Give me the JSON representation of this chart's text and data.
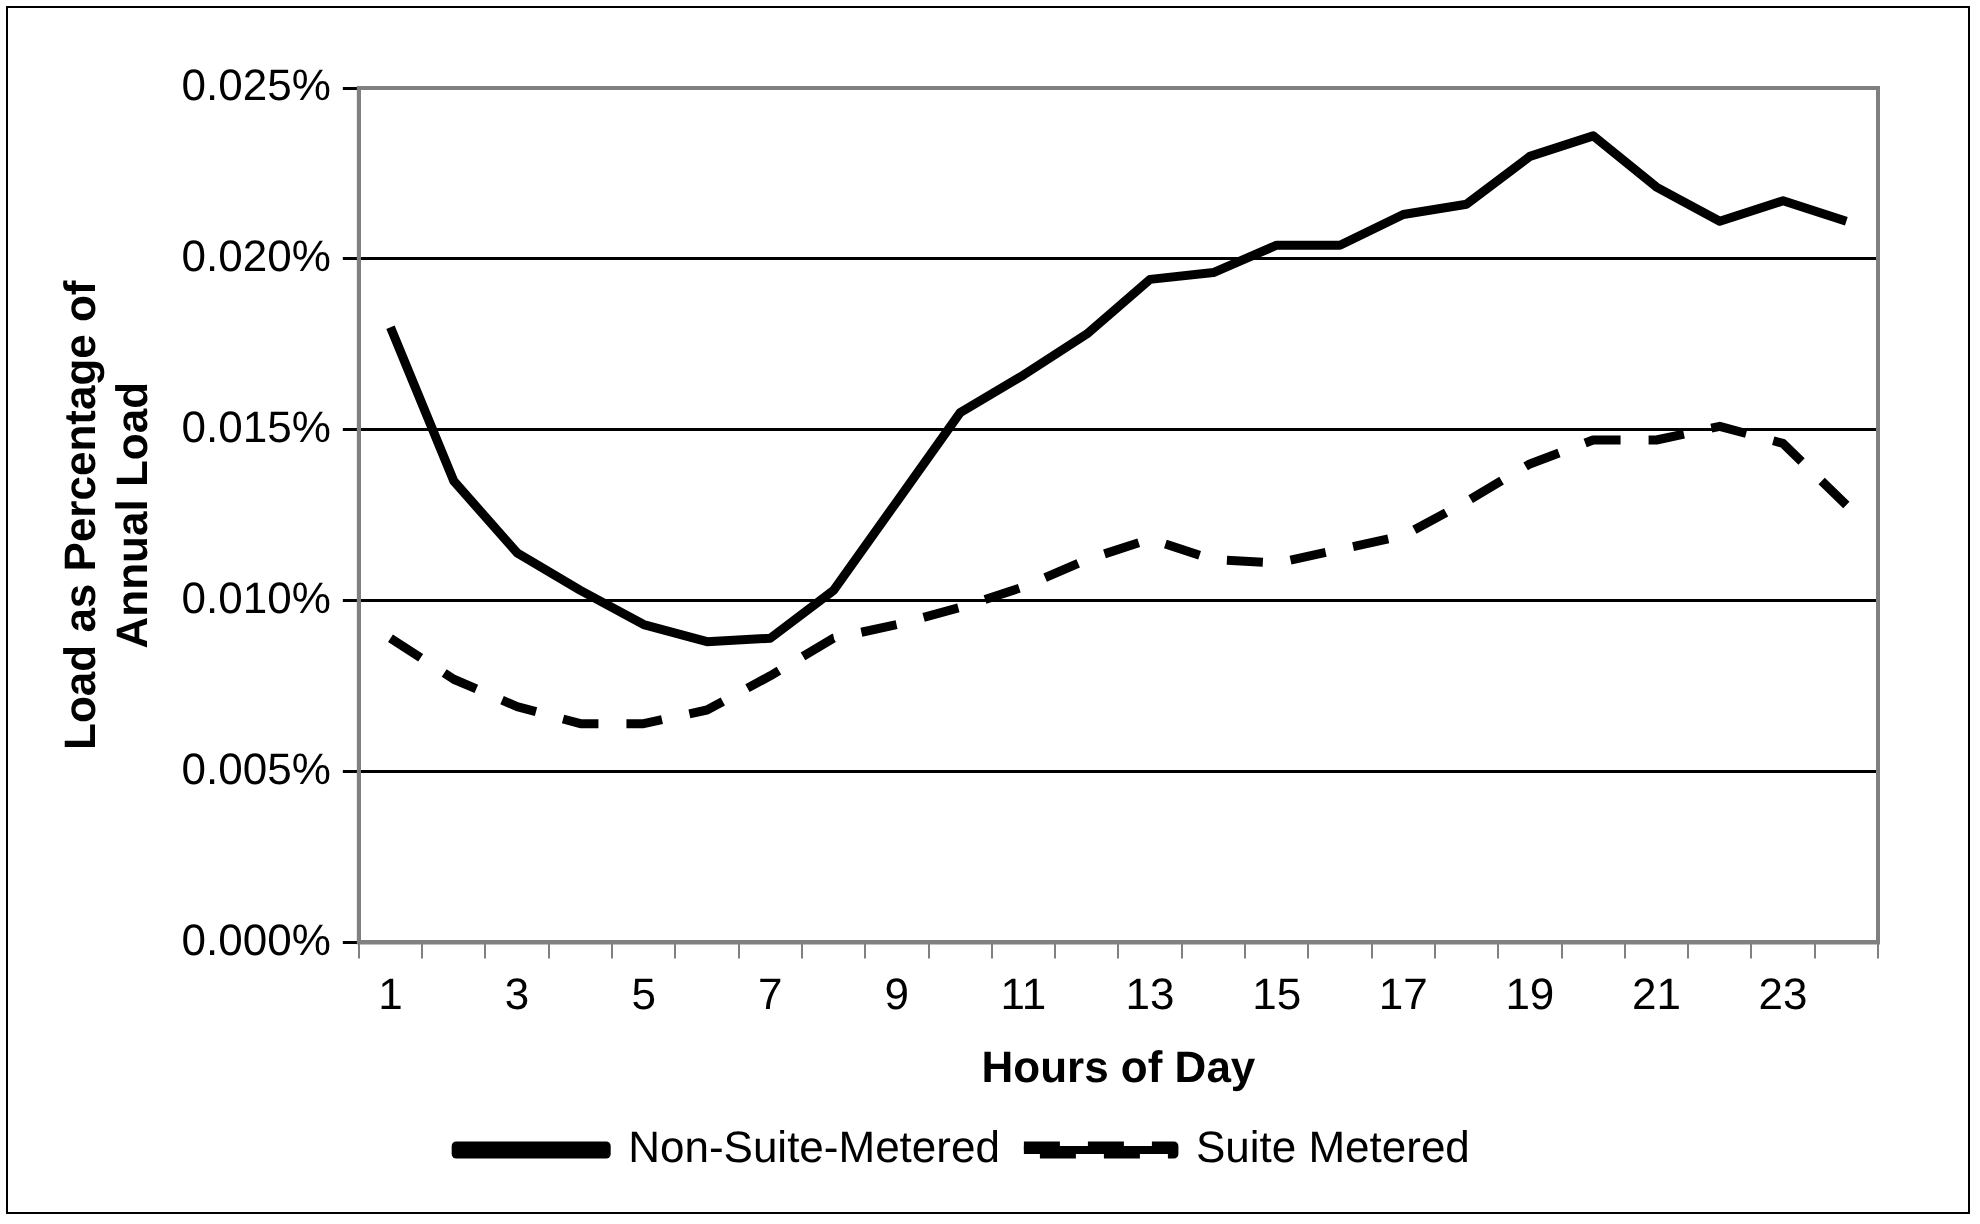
{
  "chart_data": {
    "type": "line",
    "xlabel": "Hours of Day",
    "ylabel": "Load as Percentage of Annual Load",
    "x": [
      1,
      2,
      3,
      4,
      5,
      6,
      7,
      8,
      9,
      10,
      11,
      12,
      13,
      14,
      15,
      16,
      17,
      18,
      19,
      20,
      21,
      22,
      23,
      24
    ],
    "xlim": [
      0.5,
      24.5
    ],
    "xticks": [
      {
        "value": 0.5,
        "label": null
      },
      1,
      {
        "value": 1.5,
        "label": null
      },
      {
        "value": 2.5,
        "label": null
      },
      3,
      {
        "value": 3.5,
        "label": null
      },
      {
        "value": 4.5,
        "label": null
      },
      5,
      {
        "value": 5.5,
        "label": null
      },
      {
        "value": 6.5,
        "label": null
      },
      7,
      {
        "value": 7.5,
        "label": null
      },
      {
        "value": 8.5,
        "label": null
      },
      9,
      {
        "value": 9.5,
        "label": null
      },
      {
        "value": 10.5,
        "label": null
      },
      11,
      {
        "value": 11.5,
        "label": null
      },
      {
        "value": 12.5,
        "label": null
      },
      13,
      {
        "value": 13.5,
        "label": null
      },
      {
        "value": 14.5,
        "label": null
      },
      15,
      {
        "value": 15.5,
        "label": null
      },
      {
        "value": 16.5,
        "label": null
      },
      17,
      {
        "value": 17.5,
        "label": null
      },
      {
        "value": 18.5,
        "label": null
      },
      19,
      {
        "value": 19.5,
        "label": null
      },
      {
        "value": 20.5,
        "label": null
      },
      21,
      {
        "value": 21.5,
        "label": null
      },
      {
        "value": 22.5,
        "label": null
      },
      23,
      {
        "value": 23.5,
        "label": null
      },
      {
        "value": 24.5,
        "label": null
      }
    ],
    "series": [
      {
        "name": "Non-Suite-Metered",
        "color": "#000000",
        "line_style": "solid",
        "values": [
          0.018,
          0.0135,
          0.0114,
          0.0103,
          0.0093,
          0.0088,
          0.0089,
          0.0103,
          0.0129,
          0.0155,
          0.0166,
          0.0178,
          0.0194,
          0.0196,
          0.0204,
          0.0204,
          0.0213,
          0.0216,
          0.023,
          0.0236,
          0.0221,
          0.0211,
          0.0217,
          0.0211
        ]
      },
      {
        "name": "Suite Metered",
        "color": "#000000",
        "line_style": "dashed",
        "values": [
          0.0089,
          0.0077,
          0.0069,
          0.0064,
          0.0064,
          0.0068,
          0.0078,
          0.0089,
          0.0093,
          0.0098,
          0.0104,
          0.0112,
          0.0118,
          0.0112,
          0.0111,
          0.0115,
          0.0119,
          0.0129,
          0.014,
          0.0147,
          0.0147,
          0.0151,
          0.0146,
          0.0128
        ]
      }
    ],
    "ylim": [
      0,
      0.025
    ],
    "yticks": [
      {
        "value": 0,
        "label": "0.000%"
      },
      {
        "value": 0.005,
        "label": "0.005%"
      },
      {
        "value": 0.01,
        "label": "0.010%"
      },
      {
        "value": 0.015,
        "label": "0.015%"
      },
      {
        "value": 0.02,
        "label": "0.020%"
      },
      {
        "value": 0.025,
        "label": "0.025%"
      }
    ],
    "grid": "y",
    "legend": "bottom",
    "marker": "none"
  }
}
